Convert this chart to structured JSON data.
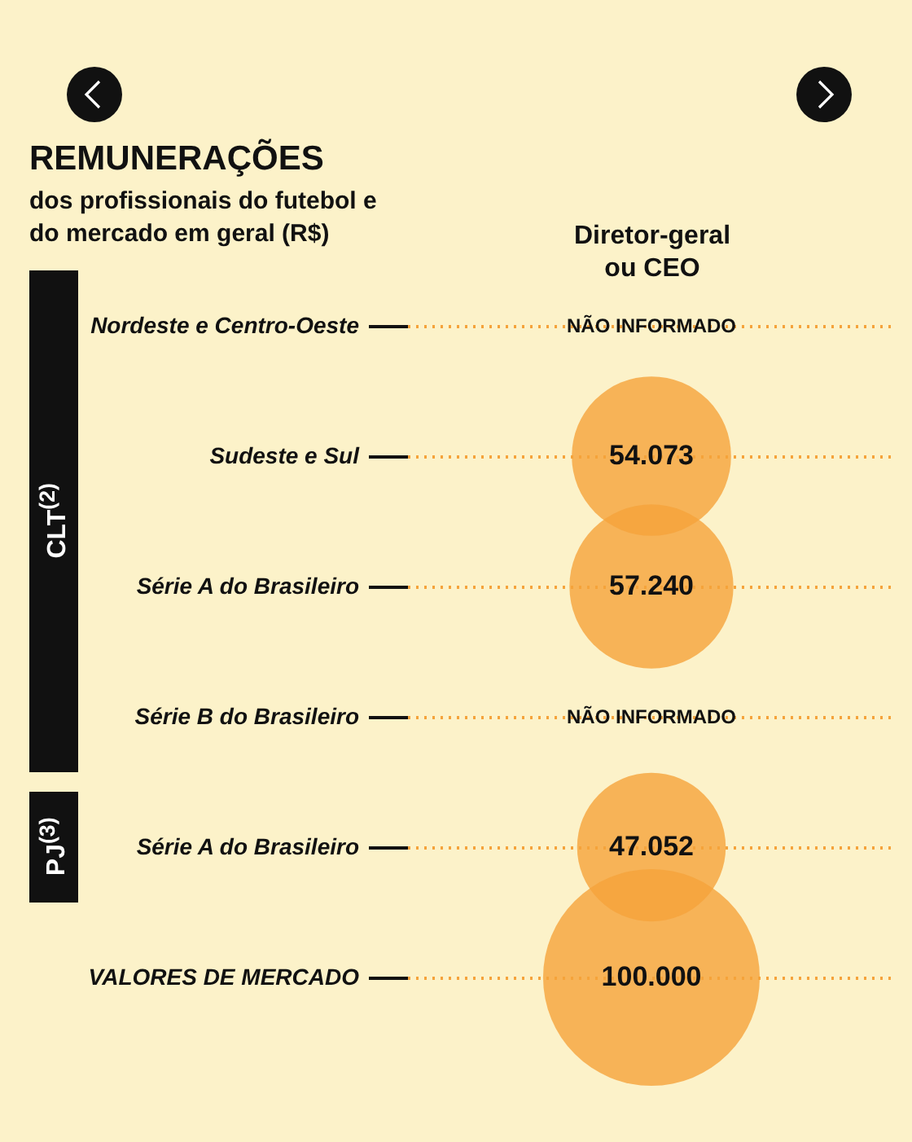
{
  "chart_data": {
    "type": "other",
    "title": "REMUNERAÇÕES",
    "subtitle": "dos profissionais do futebol e do mercado em geral (R$)",
    "categories": [
      "Nordeste e Centro-Oeste",
      "Sudeste e Sul",
      "Série A do Brasileiro",
      "Série B do Brasileiro",
      "Série A do Brasileiro",
      "VALORES DE MERCADO"
    ],
    "series": [
      {
        "name": "Diretor-geral ou CEO",
        "color": "#f5a33b",
        "values": [
          null,
          54073,
          57240,
          null,
          47052,
          100000
        ],
        "value_labels": [
          "NÃO INFORMADO",
          "54.073",
          "57.240",
          "NÃO INFORMADO",
          "47.052",
          "100.000"
        ]
      }
    ],
    "annotations": [
      "CLT$^{(2)}$",
      "PJ$^{(3)}$"
    ]
  }
}
